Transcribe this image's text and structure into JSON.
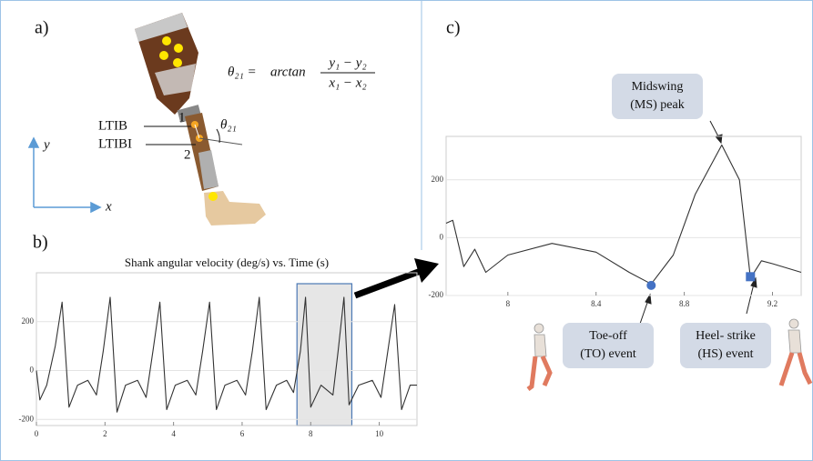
{
  "panel_labels": [
    "a)",
    "b)",
    "c)"
  ],
  "leg": {
    "labels": [
      "LTIB",
      "LTIBI"
    ],
    "points": [
      "1",
      "2"
    ],
    "angle": "θ₂₁"
  },
  "axes_icon": {
    "y": "y",
    "x": "x"
  },
  "formula": {
    "lhs": "θ₂₁ = ",
    "fn": "arctan",
    "num": "y₁ − y₂",
    "den": "x₁ − x₂"
  },
  "chart_data": [
    {
      "type": "line",
      "title": "Shank angular velocity (deg/s) vs. Time (s)",
      "x": [
        0,
        0.1,
        0.3,
        0.55,
        0.75,
        0.95,
        1.2,
        1.5,
        1.75,
        1.95,
        2.15,
        2.35,
        2.6,
        2.95,
        3.2,
        3.4,
        3.6,
        3.8,
        4.05,
        4.4,
        4.65,
        4.85,
        5.05,
        5.25,
        5.5,
        5.85,
        6.1,
        6.3,
        6.5,
        6.7,
        7.0,
        7.3,
        7.5,
        7.7,
        7.85,
        8.0,
        8.3,
        8.65,
        8.8,
        8.97,
        9.12,
        9.4,
        9.8,
        10.05,
        10.25,
        10.45,
        10.65,
        10.9,
        11.1
      ],
      "values": [
        0,
        -120,
        -60,
        100,
        280,
        -150,
        -60,
        -40,
        -100,
        80,
        300,
        -170,
        -60,
        -40,
        -110,
        80,
        280,
        -160,
        -60,
        -40,
        -100,
        80,
        280,
        -160,
        -60,
        -40,
        -100,
        80,
        300,
        -160,
        -60,
        -40,
        -90,
        80,
        300,
        -150,
        -60,
        -100,
        80,
        300,
        -140,
        -60,
        -40,
        -110,
        80,
        270,
        -160,
        -60,
        -60
      ],
      "color": "#333333",
      "xlim": [
        0,
        11.1
      ],
      "xticks": [
        0,
        2,
        4,
        6,
        8,
        10
      ],
      "ylim": [
        -225,
        400
      ],
      "yticks": [
        -200,
        0,
        200
      ],
      "grid": true,
      "highlight": [
        7.6,
        9.2
      ]
    },
    {
      "type": "line",
      "x": [
        7.72,
        7.75,
        7.8,
        7.85,
        7.9,
        8.0,
        8.2,
        8.4,
        8.55,
        8.65,
        8.75,
        8.85,
        8.97,
        9.05,
        9.1,
        9.15,
        9.2,
        9.33
      ],
      "values": [
        50,
        60,
        -100,
        -40,
        -120,
        -60,
        -20,
        -50,
        -120,
        -160,
        -60,
        150,
        320,
        200,
        -140,
        -80,
        -90,
        -120
      ],
      "color": "#333333",
      "xlim": [
        7.72,
        9.33
      ],
      "xticks": [
        8,
        8.4,
        8.8,
        9.2
      ],
      "ylim": [
        -200,
        350
      ],
      "yticks": [
        -200,
        0,
        200
      ],
      "grid": true,
      "markers": [
        {
          "x": 8.65,
          "y": -165,
          "shape": "circle",
          "color": "#4472c4"
        },
        {
          "x": 9.1,
          "y": -135,
          "shape": "square",
          "color": "#4472c4"
        }
      ],
      "annotations": [
        {
          "lines": [
            "Midswing",
            "(MS) peak"
          ]
        },
        {
          "lines": [
            "Toe-off",
            "(TO) event"
          ]
        },
        {
          "lines": [
            "Heel- strike",
            "(HS) event"
          ]
        }
      ]
    }
  ]
}
